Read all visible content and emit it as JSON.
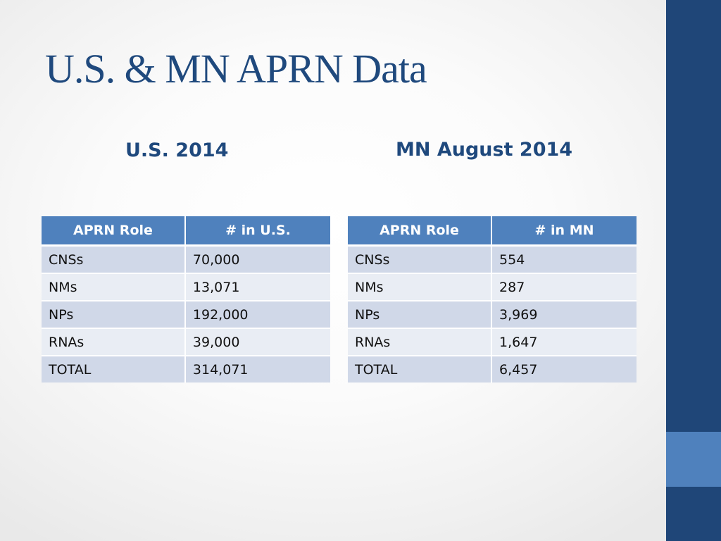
{
  "title": "U.S. & MN APRN Data",
  "us": {
    "heading": "U.S. 2014",
    "columns": [
      "APRN Role",
      "# in U.S."
    ],
    "rows": [
      {
        "role": "CNSs",
        "count": "70,000"
      },
      {
        "role": "NMs",
        "count": "13,071"
      },
      {
        "role": "NPs",
        "count": "192,000"
      },
      {
        "role": "RNAs",
        "count": "39,000"
      },
      {
        "role": "TOTAL",
        "count": "314,071"
      }
    ]
  },
  "mn": {
    "heading": "MN August 2014",
    "columns": [
      "APRN Role",
      "# in MN"
    ],
    "rows": [
      {
        "role": "CNSs",
        "count": "554"
      },
      {
        "role": "NMs",
        "count": "287"
      },
      {
        "role": "NPs",
        "count": "3,969"
      },
      {
        "role": "RNAs",
        "count": "1,647"
      },
      {
        "role": "TOTAL",
        "count": "6,457"
      }
    ]
  },
  "colors": {
    "title": "#1f497d",
    "header_fill": "#4f81bd",
    "row_dark": "#d0d8e8",
    "row_light": "#e9edf4",
    "sidebar": "#1f4678",
    "sidebar_accent": "#4f81bd"
  }
}
